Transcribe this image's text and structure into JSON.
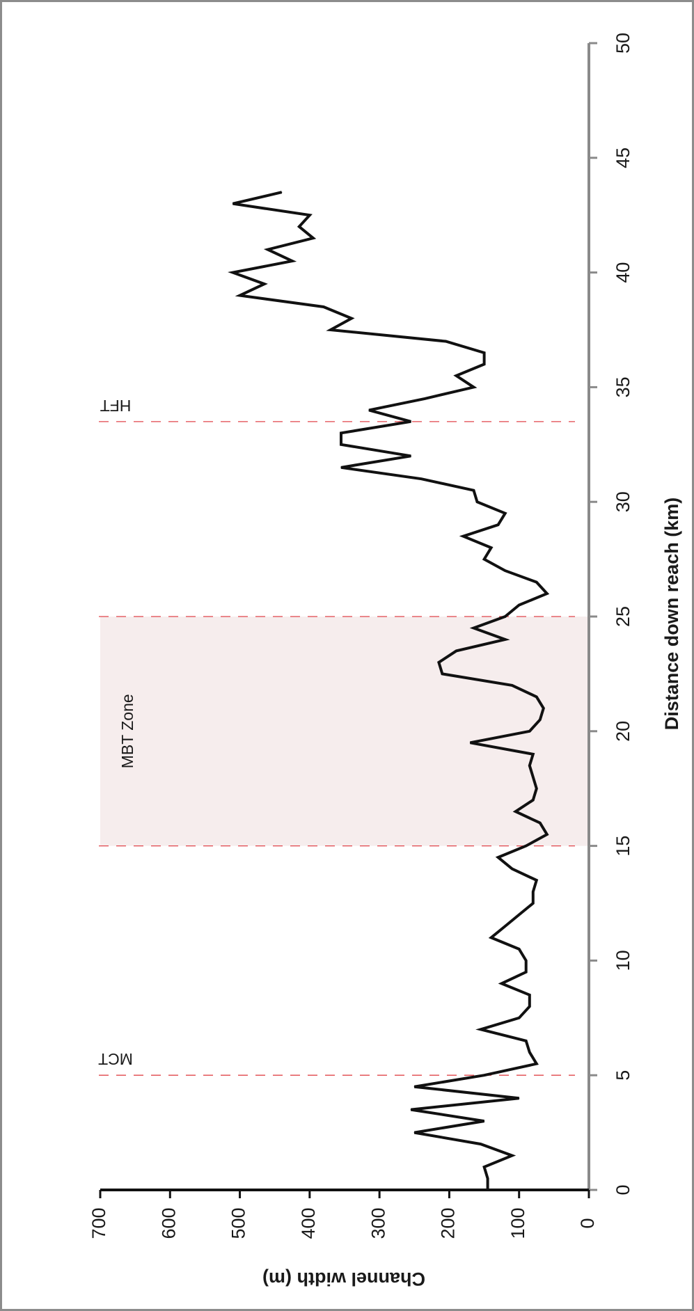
{
  "chart_data": {
    "type": "line",
    "orientation": "rotated-90-clockwise",
    "xlabel": "Distance down reach (km)",
    "ylabel": "Channel width (m)",
    "xlim": [
      0,
      50
    ],
    "ylim": [
      0,
      700
    ],
    "x_ticks": [
      "0",
      "5",
      "10",
      "15",
      "20",
      "25",
      "30",
      "35",
      "40",
      "45",
      "50"
    ],
    "y_ticks": [
      "0",
      "100",
      "200",
      "300",
      "400",
      "500",
      "600",
      "700"
    ],
    "grid": false,
    "series": [
      {
        "color": "#111111",
        "x": [
          0,
          0.5,
          1,
          1.5,
          2,
          2.5,
          3,
          3.5,
          4,
          4.5,
          5,
          5.5,
          6,
          6.5,
          7,
          7.5,
          8,
          8.5,
          9,
          9.5,
          10,
          10.5,
          11,
          11.5,
          12,
          12.5,
          13,
          13.5,
          14,
          14.5,
          15,
          15.5,
          16,
          16.5,
          17,
          17.5,
          18,
          18.5,
          19,
          19.5,
          20,
          20.5,
          21,
          21.5,
          22,
          22.5,
          23,
          23.5,
          24,
          24.5,
          25,
          25.5,
          26,
          26.5,
          27,
          27.5,
          28,
          28.5,
          29,
          29.5,
          30,
          30.5,
          31,
          31.5,
          32,
          32.5,
          33,
          33.5,
          34,
          34.5,
          35,
          35.5,
          36,
          36.5,
          37,
          37.5,
          38,
          38.5,
          39,
          39.5,
          40,
          40.5,
          41,
          41.5,
          42,
          42.5,
          43,
          43.5
        ],
        "values": [
          145,
          145,
          150,
          110,
          155,
          250,
          150,
          255,
          100,
          250,
          150,
          75,
          85,
          90,
          155,
          100,
          85,
          85,
          125,
          90,
          90,
          100,
          140,
          120,
          100,
          80,
          80,
          75,
          110,
          130,
          90,
          60,
          70,
          105,
          80,
          75,
          80,
          85,
          80,
          170,
          85,
          70,
          65,
          75,
          110,
          210,
          215,
          190,
          120,
          165,
          120,
          100,
          60,
          75,
          120,
          150,
          140,
          180,
          130,
          120,
          160,
          165,
          240,
          355,
          255,
          355,
          355,
          255,
          315,
          235,
          165,
          190,
          150,
          150,
          205,
          370,
          340,
          380,
          500,
          465,
          510,
          425,
          460,
          395,
          415,
          400,
          510,
          440
        ]
      }
    ],
    "reference_lines": [
      {
        "x": 5,
        "label": "MCT",
        "style": "dashed",
        "color": "#e0454a"
      },
      {
        "x": 15,
        "label": "",
        "style": "dashed",
        "color": "#e0454a"
      },
      {
        "x": 25,
        "label": "",
        "style": "dashed",
        "color": "#e0454a"
      },
      {
        "x": 33.5,
        "label": "HFT",
        "style": "dashed",
        "color": "#e0454a"
      }
    ],
    "shaded_regions": [
      {
        "x_from": 15,
        "x_to": 25,
        "label": "MBT Zone",
        "color": "#f6eded"
      }
    ]
  }
}
